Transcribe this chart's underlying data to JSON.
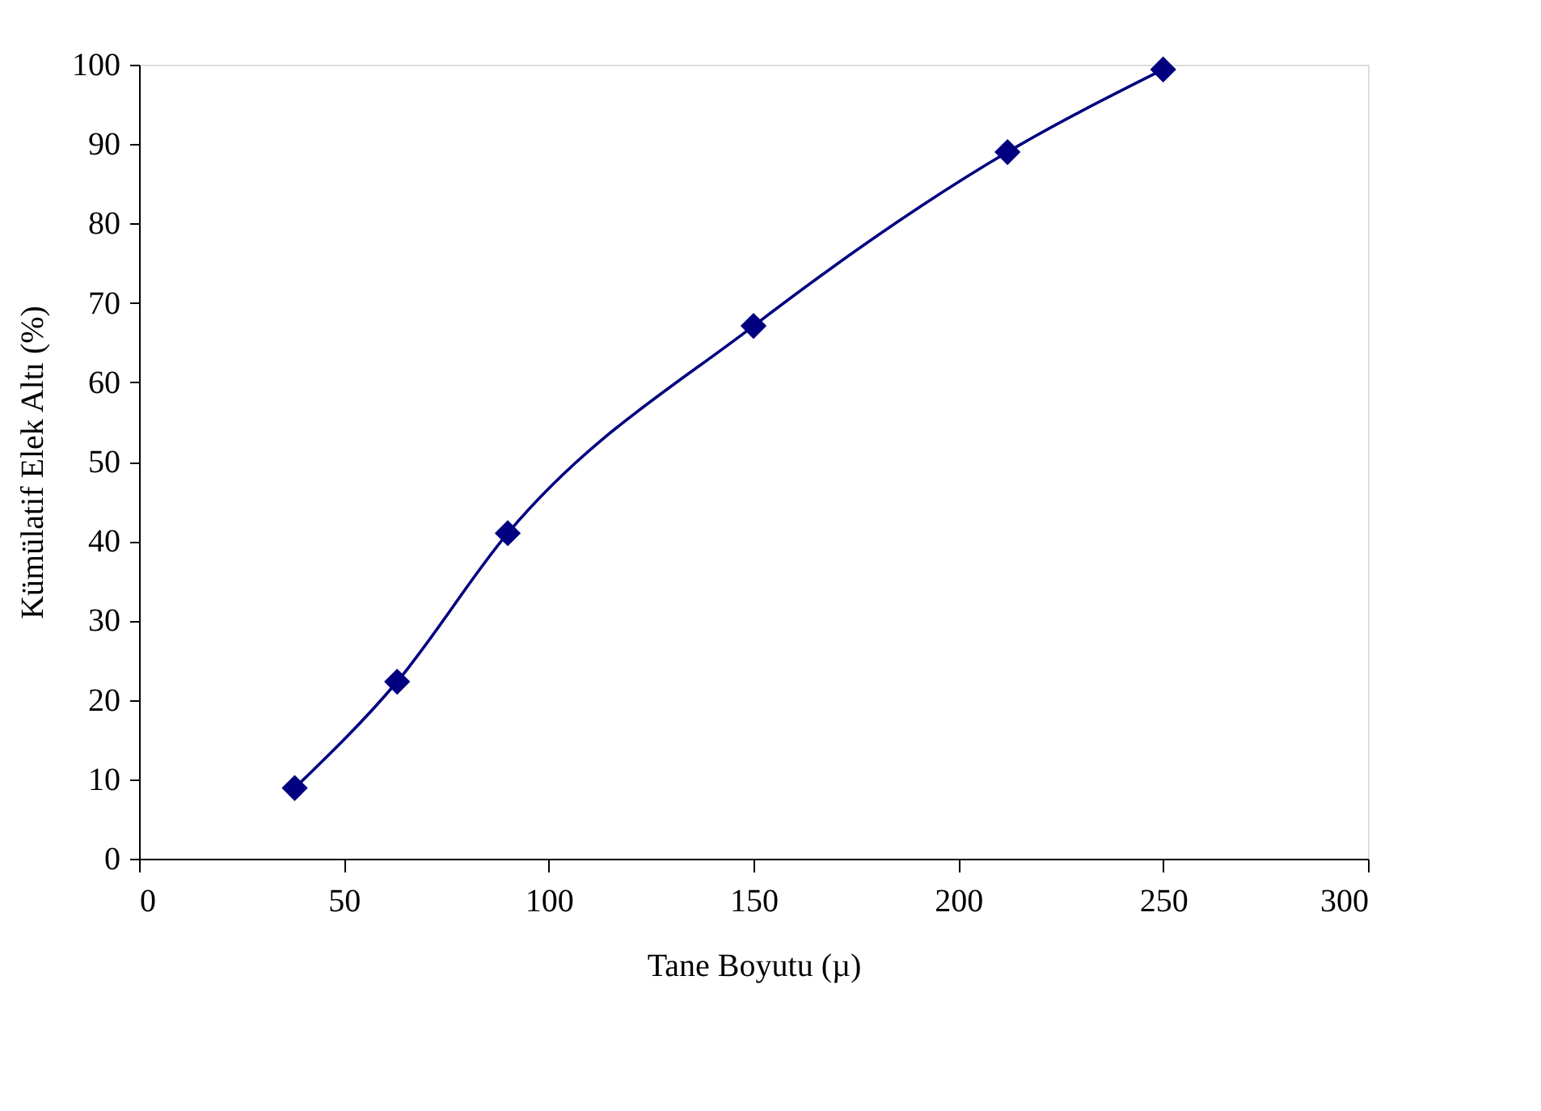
{
  "chart_data": {
    "type": "line",
    "xlabel": "Tane Boyutu (µ)",
    "ylabel": "Kümülatif Elek Altı (%)",
    "x": [
      38,
      63,
      90,
      150,
      212,
      250
    ],
    "series": [
      {
        "color": "#000080",
        "values": [
          8.9,
          22.3,
          41.0,
          67.1,
          89.0,
          99.4
        ]
      }
    ],
    "xlim": [
      0,
      300
    ],
    "xticks": [
      0,
      50,
      100,
      150,
      200,
      250,
      300
    ],
    "ylim": [
      0,
      100
    ],
    "yticks": [
      0,
      10,
      20,
      30,
      40,
      50,
      60,
      70,
      80,
      90,
      100
    ],
    "grid": false,
    "marker": "diamond",
    "line_style": "solid"
  }
}
